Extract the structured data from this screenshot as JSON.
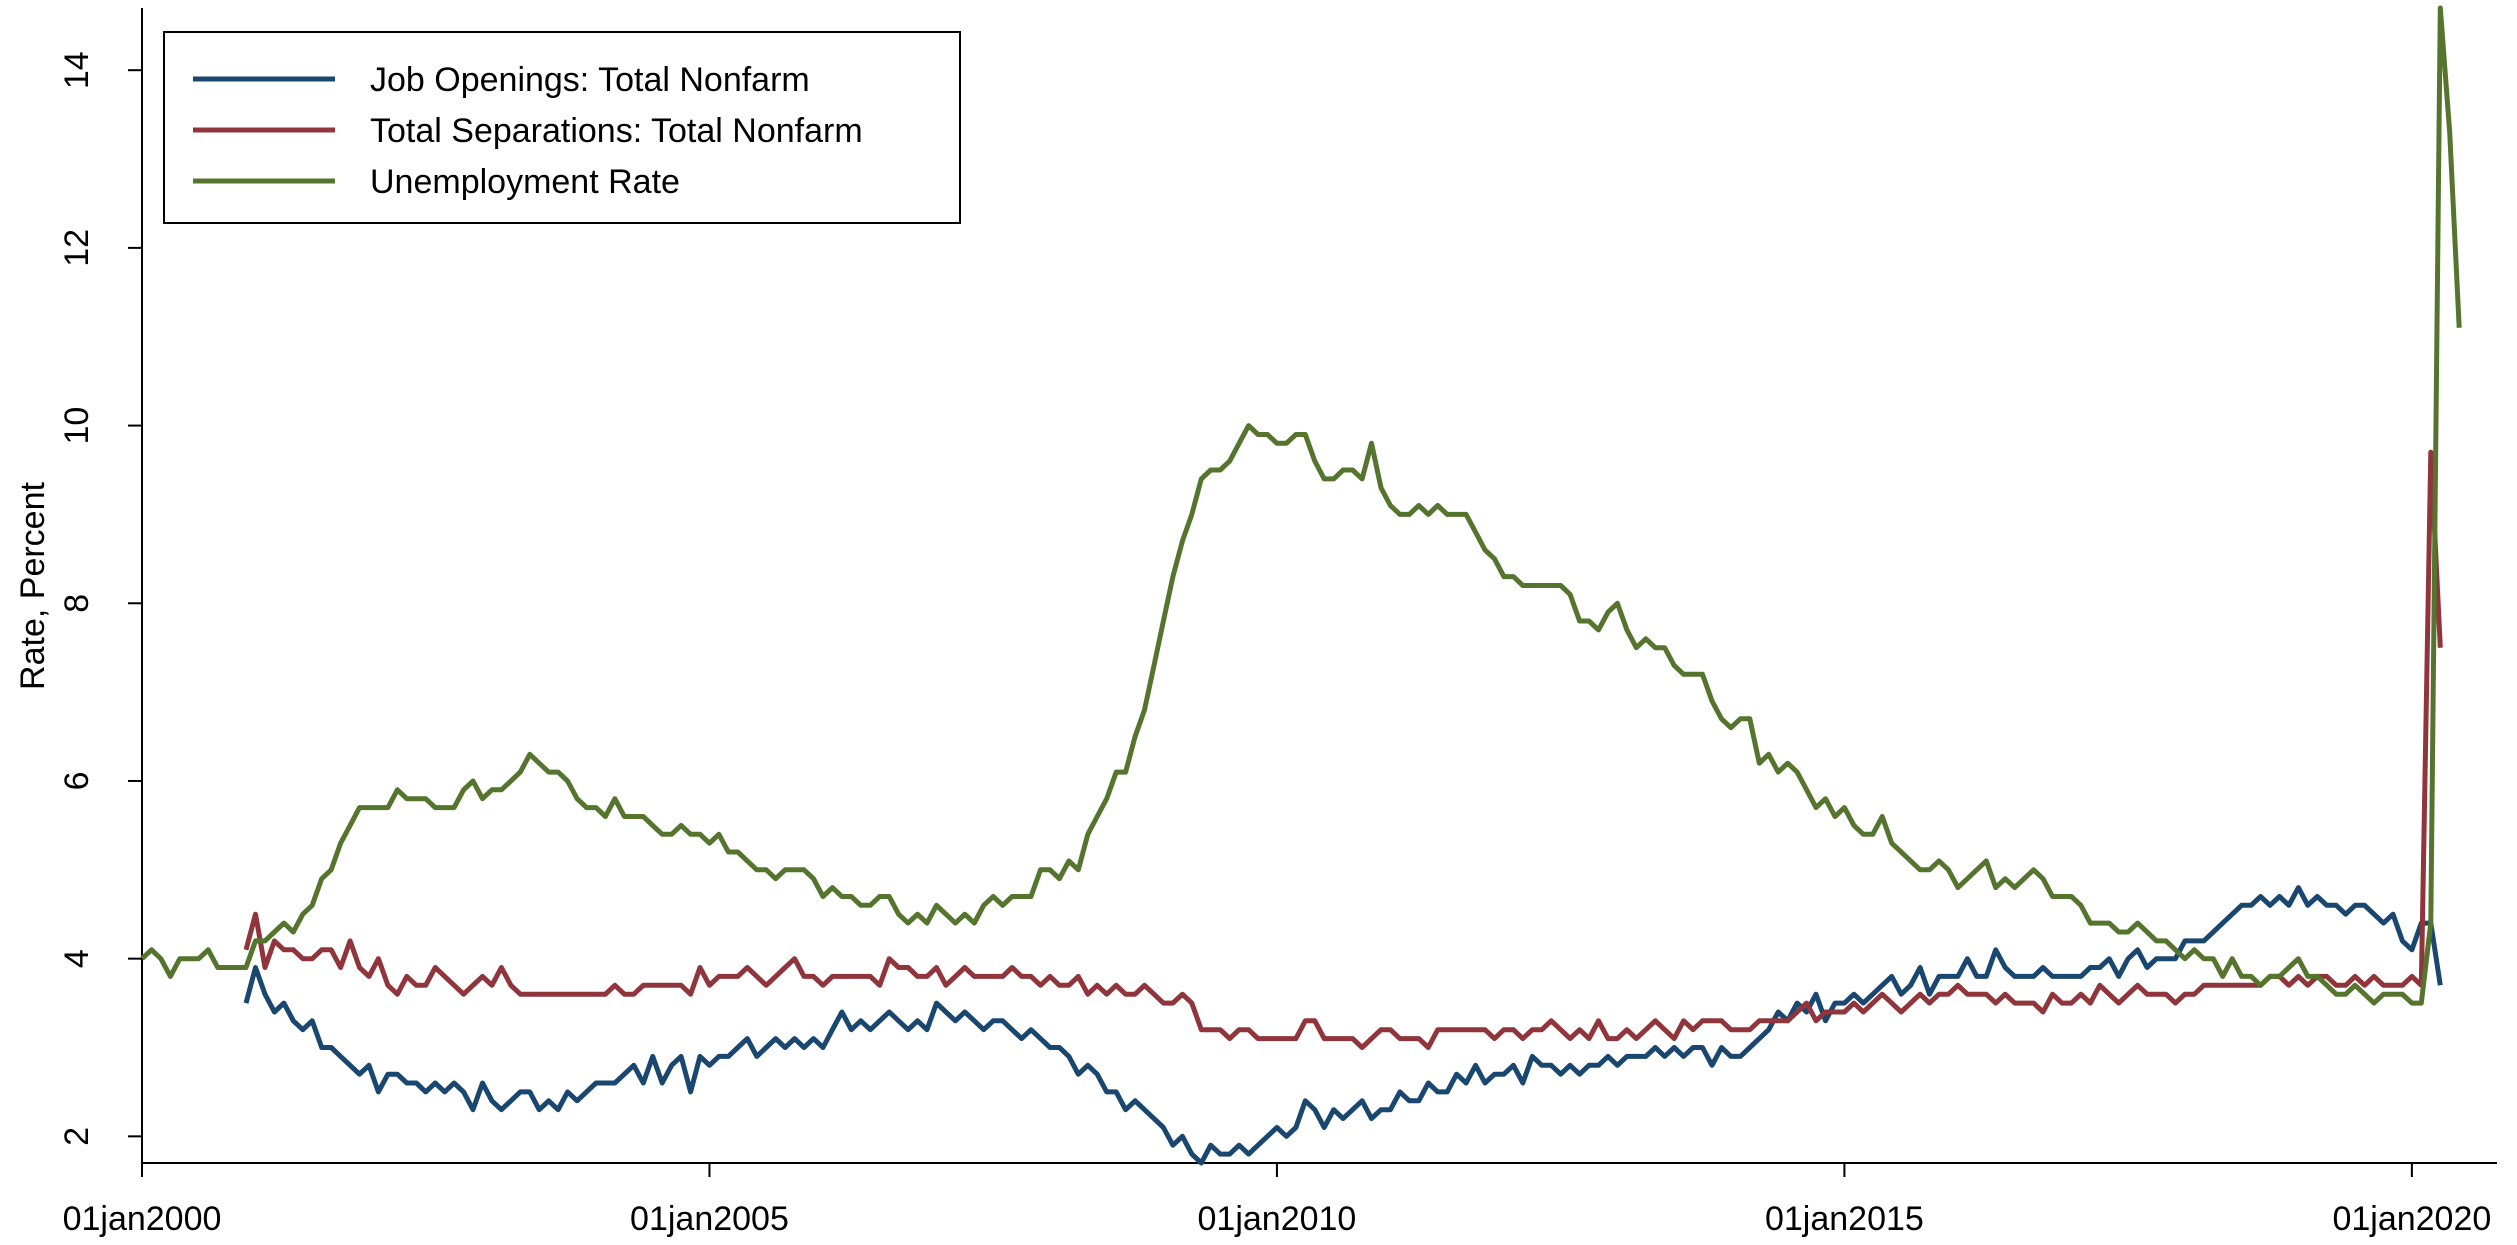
{
  "chart_data": {
    "type": "line",
    "ylabel": "Rate, Percent",
    "x": [
      "2000-01",
      "2000-02",
      "2000-03",
      "2000-04",
      "2000-05",
      "2000-06",
      "2000-07",
      "2000-08",
      "2000-09",
      "2000-10",
      "2000-11",
      "2000-12",
      "2001-01",
      "2001-02",
      "2001-03",
      "2001-04",
      "2001-05",
      "2001-06",
      "2001-07",
      "2001-08",
      "2001-09",
      "2001-10",
      "2001-11",
      "2001-12",
      "2002-01",
      "2002-02",
      "2002-03",
      "2002-04",
      "2002-05",
      "2002-06",
      "2002-07",
      "2002-08",
      "2002-09",
      "2002-10",
      "2002-11",
      "2002-12",
      "2003-01",
      "2003-02",
      "2003-03",
      "2003-04",
      "2003-05",
      "2003-06",
      "2003-07",
      "2003-08",
      "2003-09",
      "2003-10",
      "2003-11",
      "2003-12",
      "2004-01",
      "2004-02",
      "2004-03",
      "2004-04",
      "2004-05",
      "2004-06",
      "2004-07",
      "2004-08",
      "2004-09",
      "2004-10",
      "2004-11",
      "2004-12",
      "2005-01",
      "2005-02",
      "2005-03",
      "2005-04",
      "2005-05",
      "2005-06",
      "2005-07",
      "2005-08",
      "2005-09",
      "2005-10",
      "2005-11",
      "2005-12",
      "2006-01",
      "2006-02",
      "2006-03",
      "2006-04",
      "2006-05",
      "2006-06",
      "2006-07",
      "2006-08",
      "2006-09",
      "2006-10",
      "2006-11",
      "2006-12",
      "2007-01",
      "2007-02",
      "2007-03",
      "2007-04",
      "2007-05",
      "2007-06",
      "2007-07",
      "2007-08",
      "2007-09",
      "2007-10",
      "2007-11",
      "2007-12",
      "2008-01",
      "2008-02",
      "2008-03",
      "2008-04",
      "2008-05",
      "2008-06",
      "2008-07",
      "2008-08",
      "2008-09",
      "2008-10",
      "2008-11",
      "2008-12",
      "2009-01",
      "2009-02",
      "2009-03",
      "2009-04",
      "2009-05",
      "2009-06",
      "2009-07",
      "2009-08",
      "2009-09",
      "2009-10",
      "2009-11",
      "2009-12",
      "2010-01",
      "2010-02",
      "2010-03",
      "2010-04",
      "2010-05",
      "2010-06",
      "2010-07",
      "2010-08",
      "2010-09",
      "2010-10",
      "2010-11",
      "2010-12",
      "2011-01",
      "2011-02",
      "2011-03",
      "2011-04",
      "2011-05",
      "2011-06",
      "2011-07",
      "2011-08",
      "2011-09",
      "2011-10",
      "2011-11",
      "2011-12",
      "2012-01",
      "2012-02",
      "2012-03",
      "2012-04",
      "2012-05",
      "2012-06",
      "2012-07",
      "2012-08",
      "2012-09",
      "2012-10",
      "2012-11",
      "2012-12",
      "2013-01",
      "2013-02",
      "2013-03",
      "2013-04",
      "2013-05",
      "2013-06",
      "2013-07",
      "2013-08",
      "2013-09",
      "2013-10",
      "2013-11",
      "2013-12",
      "2014-01",
      "2014-02",
      "2014-03",
      "2014-04",
      "2014-05",
      "2014-06",
      "2014-07",
      "2014-08",
      "2014-09",
      "2014-10",
      "2014-11",
      "2014-12",
      "2015-01",
      "2015-02",
      "2015-03",
      "2015-04",
      "2015-05",
      "2015-06",
      "2015-07",
      "2015-08",
      "2015-09",
      "2015-10",
      "2015-11",
      "2015-12",
      "2016-01",
      "2016-02",
      "2016-03",
      "2016-04",
      "2016-05",
      "2016-06",
      "2016-07",
      "2016-08",
      "2016-09",
      "2016-10",
      "2016-11",
      "2016-12",
      "2017-01",
      "2017-02",
      "2017-03",
      "2017-04",
      "2017-05",
      "2017-06",
      "2017-07",
      "2017-08",
      "2017-09",
      "2017-10",
      "2017-11",
      "2017-12",
      "2018-01",
      "2018-02",
      "2018-03",
      "2018-04",
      "2018-05",
      "2018-06",
      "2018-07",
      "2018-08",
      "2018-09",
      "2018-10",
      "2018-11",
      "2018-12",
      "2019-01",
      "2019-02",
      "2019-03",
      "2019-04",
      "2019-05",
      "2019-06",
      "2019-07",
      "2019-08",
      "2019-09",
      "2019-10",
      "2019-11",
      "2019-12",
      "2020-01",
      "2020-02",
      "2020-03",
      "2020-04",
      "2020-05",
      "2020-06"
    ],
    "series": [
      {
        "name": "Job Openings: Total Nonfarm",
        "color": "#1a476f",
        "values": [
          null,
          null,
          null,
          null,
          null,
          null,
          null,
          null,
          null,
          null,
          null,
          3.5,
          3.9,
          3.6,
          3.4,
          3.5,
          3.3,
          3.2,
          3.3,
          3.0,
          3.0,
          2.9,
          2.8,
          2.7,
          2.8,
          2.5,
          2.7,
          2.7,
          2.6,
          2.6,
          2.5,
          2.6,
          2.5,
          2.6,
          2.5,
          2.3,
          2.6,
          2.4,
          2.3,
          2.4,
          2.5,
          2.5,
          2.3,
          2.4,
          2.3,
          2.5,
          2.4,
          2.5,
          2.6,
          2.6,
          2.6,
          2.7,
          2.8,
          2.6,
          2.9,
          2.6,
          2.8,
          2.9,
          2.5,
          2.9,
          2.8,
          2.9,
          2.9,
          3.0,
          3.1,
          2.9,
          3.0,
          3.1,
          3.0,
          3.1,
          3.0,
          3.1,
          3.0,
          3.2,
          3.4,
          3.2,
          3.3,
          3.2,
          3.3,
          3.4,
          3.3,
          3.2,
          3.3,
          3.2,
          3.5,
          3.4,
          3.3,
          3.4,
          3.3,
          3.2,
          3.3,
          3.3,
          3.2,
          3.1,
          3.2,
          3.1,
          3.0,
          3.0,
          2.9,
          2.7,
          2.8,
          2.7,
          2.5,
          2.5,
          2.3,
          2.4,
          2.3,
          2.2,
          2.1,
          1.9,
          2.0,
          1.8,
          1.7,
          1.9,
          1.8,
          1.8,
          1.9,
          1.8,
          1.9,
          2.0,
          2.1,
          2.0,
          2.1,
          2.4,
          2.3,
          2.1,
          2.3,
          2.2,
          2.3,
          2.4,
          2.2,
          2.3,
          2.3,
          2.5,
          2.4,
          2.4,
          2.6,
          2.5,
          2.5,
          2.7,
          2.6,
          2.8,
          2.6,
          2.7,
          2.7,
          2.8,
          2.6,
          2.9,
          2.8,
          2.8,
          2.7,
          2.8,
          2.7,
          2.8,
          2.8,
          2.9,
          2.8,
          2.9,
          2.9,
          2.9,
          3.0,
          2.9,
          3.0,
          2.9,
          3.0,
          3.0,
          2.8,
          3.0,
          2.9,
          2.9,
          3.0,
          3.1,
          3.2,
          3.4,
          3.3,
          3.5,
          3.4,
          3.6,
          3.3,
          3.5,
          3.5,
          3.6,
          3.5,
          3.6,
          3.7,
          3.8,
          3.6,
          3.7,
          3.9,
          3.6,
          3.8,
          3.8,
          3.8,
          4.0,
          3.8,
          3.8,
          4.1,
          3.9,
          3.8,
          3.8,
          3.8,
          3.9,
          3.8,
          3.8,
          3.8,
          3.8,
          3.9,
          3.9,
          4.0,
          3.8,
          4.0,
          4.1,
          3.9,
          4.0,
          4.0,
          4.0,
          4.2,
          4.2,
          4.2,
          4.3,
          4.4,
          4.5,
          4.6,
          4.6,
          4.7,
          4.6,
          4.7,
          4.6,
          4.8,
          4.6,
          4.7,
          4.6,
          4.6,
          4.5,
          4.6,
          4.6,
          4.5,
          4.4,
          4.5,
          4.2,
          4.1,
          4.4,
          4.4,
          3.7,
          null,
          null
        ]
      },
      {
        "name": "Total Separations: Total Nonfarm",
        "color": "#90353b",
        "values": [
          null,
          null,
          null,
          null,
          null,
          null,
          null,
          null,
          null,
          null,
          null,
          4.1,
          4.5,
          3.9,
          4.2,
          4.1,
          4.1,
          4.0,
          4.0,
          4.1,
          4.1,
          3.9,
          4.2,
          3.9,
          3.8,
          4.0,
          3.7,
          3.6,
          3.8,
          3.7,
          3.7,
          3.9,
          3.8,
          3.7,
          3.6,
          3.7,
          3.8,
          3.7,
          3.9,
          3.7,
          3.6,
          3.6,
          3.6,
          3.6,
          3.6,
          3.6,
          3.6,
          3.6,
          3.6,
          3.6,
          3.7,
          3.6,
          3.6,
          3.7,
          3.7,
          3.7,
          3.7,
          3.7,
          3.6,
          3.9,
          3.7,
          3.8,
          3.8,
          3.8,
          3.9,
          3.8,
          3.7,
          3.8,
          3.9,
          4.0,
          3.8,
          3.8,
          3.7,
          3.8,
          3.8,
          3.8,
          3.8,
          3.8,
          3.7,
          4.0,
          3.9,
          3.9,
          3.8,
          3.8,
          3.9,
          3.7,
          3.8,
          3.9,
          3.8,
          3.8,
          3.8,
          3.8,
          3.9,
          3.8,
          3.8,
          3.7,
          3.8,
          3.7,
          3.7,
          3.8,
          3.6,
          3.7,
          3.6,
          3.7,
          3.6,
          3.6,
          3.7,
          3.6,
          3.5,
          3.5,
          3.6,
          3.5,
          3.2,
          3.2,
          3.2,
          3.1,
          3.2,
          3.2,
          3.1,
          3.1,
          3.1,
          3.1,
          3.1,
          3.3,
          3.3,
          3.1,
          3.1,
          3.1,
          3.1,
          3.0,
          3.1,
          3.2,
          3.2,
          3.1,
          3.1,
          3.1,
          3.0,
          3.2,
          3.2,
          3.2,
          3.2,
          3.2,
          3.2,
          3.1,
          3.2,
          3.2,
          3.1,
          3.2,
          3.2,
          3.3,
          3.2,
          3.1,
          3.2,
          3.1,
          3.3,
          3.1,
          3.1,
          3.2,
          3.1,
          3.2,
          3.3,
          3.2,
          3.1,
          3.3,
          3.2,
          3.3,
          3.3,
          3.3,
          3.2,
          3.2,
          3.2,
          3.3,
          3.3,
          3.3,
          3.3,
          3.4,
          3.5,
          3.3,
          3.4,
          3.4,
          3.4,
          3.5,
          3.4,
          3.5,
          3.6,
          3.5,
          3.4,
          3.5,
          3.6,
          3.5,
          3.6,
          3.6,
          3.7,
          3.6,
          3.6,
          3.6,
          3.5,
          3.6,
          3.5,
          3.5,
          3.5,
          3.4,
          3.6,
          3.5,
          3.5,
          3.6,
          3.5,
          3.7,
          3.6,
          3.5,
          3.6,
          3.7,
          3.6,
          3.6,
          3.6,
          3.5,
          3.6,
          3.6,
          3.7,
          3.7,
          3.7,
          3.7,
          3.7,
          3.7,
          3.7,
          3.8,
          3.8,
          3.7,
          3.8,
          3.7,
          3.8,
          3.8,
          3.7,
          3.7,
          3.8,
          3.7,
          3.8,
          3.7,
          3.7,
          3.7,
          3.8,
          3.7,
          9.7,
          7.5,
          null,
          null
        ]
      },
      {
        "name": "Unemployment Rate",
        "color": "#55752f",
        "values": [
          4.0,
          4.1,
          4.0,
          3.8,
          4.0,
          4.0,
          4.0,
          4.1,
          3.9,
          3.9,
          3.9,
          3.9,
          4.2,
          4.2,
          4.3,
          4.4,
          4.3,
          4.5,
          4.6,
          4.9,
          5.0,
          5.3,
          5.5,
          5.7,
          5.7,
          5.7,
          5.7,
          5.9,
          5.8,
          5.8,
          5.8,
          5.7,
          5.7,
          5.7,
          5.9,
          6.0,
          5.8,
          5.9,
          5.9,
          6.0,
          6.1,
          6.3,
          6.2,
          6.1,
          6.1,
          6.0,
          5.8,
          5.7,
          5.7,
          5.6,
          5.8,
          5.6,
          5.6,
          5.6,
          5.5,
          5.4,
          5.4,
          5.5,
          5.4,
          5.4,
          5.3,
          5.4,
          5.2,
          5.2,
          5.1,
          5.0,
          5.0,
          4.9,
          5.0,
          5.0,
          5.0,
          4.9,
          4.7,
          4.8,
          4.7,
          4.7,
          4.6,
          4.6,
          4.7,
          4.7,
          4.5,
          4.4,
          4.5,
          4.4,
          4.6,
          4.5,
          4.4,
          4.5,
          4.4,
          4.6,
          4.7,
          4.6,
          4.7,
          4.7,
          4.7,
          5.0,
          5.0,
          4.9,
          5.1,
          5.0,
          5.4,
          5.6,
          5.8,
          6.1,
          6.1,
          6.5,
          6.8,
          7.3,
          7.8,
          8.3,
          8.7,
          9.0,
          9.4,
          9.5,
          9.5,
          9.6,
          9.8,
          10.0,
          9.9,
          9.9,
          9.8,
          9.8,
          9.9,
          9.9,
          9.6,
          9.4,
          9.4,
          9.5,
          9.5,
          9.4,
          9.8,
          9.3,
          9.1,
          9.0,
          9.0,
          9.1,
          9.0,
          9.1,
          9.0,
          9.0,
          9.0,
          8.8,
          8.6,
          8.5,
          8.3,
          8.3,
          8.2,
          8.2,
          8.2,
          8.2,
          8.2,
          8.1,
          7.8,
          7.8,
          7.7,
          7.9,
          8.0,
          7.7,
          7.5,
          7.6,
          7.5,
          7.5,
          7.3,
          7.2,
          7.2,
          7.2,
          6.9,
          6.7,
          6.6,
          6.7,
          6.7,
          6.2,
          6.3,
          6.1,
          6.2,
          6.1,
          5.9,
          5.7,
          5.8,
          5.6,
          5.7,
          5.5,
          5.4,
          5.4,
          5.6,
          5.3,
          5.2,
          5.1,
          5.0,
          5.0,
          5.1,
          5.0,
          4.8,
          4.9,
          5.0,
          5.1,
          4.8,
          4.9,
          4.8,
          4.9,
          5.0,
          4.9,
          4.7,
          4.7,
          4.7,
          4.6,
          4.4,
          4.4,
          4.4,
          4.3,
          4.3,
          4.4,
          4.3,
          4.2,
          4.2,
          4.1,
          4.0,
          4.1,
          4.0,
          4.0,
          3.8,
          4.0,
          3.8,
          3.8,
          3.7,
          3.8,
          3.8,
          3.9,
          4.0,
          3.8,
          3.8,
          3.7,
          3.6,
          3.6,
          3.7,
          3.6,
          3.5,
          3.6,
          3.6,
          3.6,
          3.5,
          3.5,
          4.4,
          14.7,
          13.3,
          11.1
        ]
      }
    ],
    "xlim": [
      "2000-01-01",
      "2020-10-01"
    ],
    "xticks": [
      {
        "value": "2000-01-01",
        "label": "01jan2000"
      },
      {
        "value": "2005-01-01",
        "label": "01jan2005"
      },
      {
        "value": "2010-01-01",
        "label": "01jan2010"
      },
      {
        "value": "2015-01-01",
        "label": "01jan2015"
      },
      {
        "value": "2020-01-01",
        "label": "01jan2020"
      }
    ],
    "ylim": [
      1.7,
      14.7
    ],
    "yticks": [
      2,
      4,
      6,
      8,
      10,
      12,
      14
    ],
    "grid": false,
    "legend": "upper left"
  }
}
